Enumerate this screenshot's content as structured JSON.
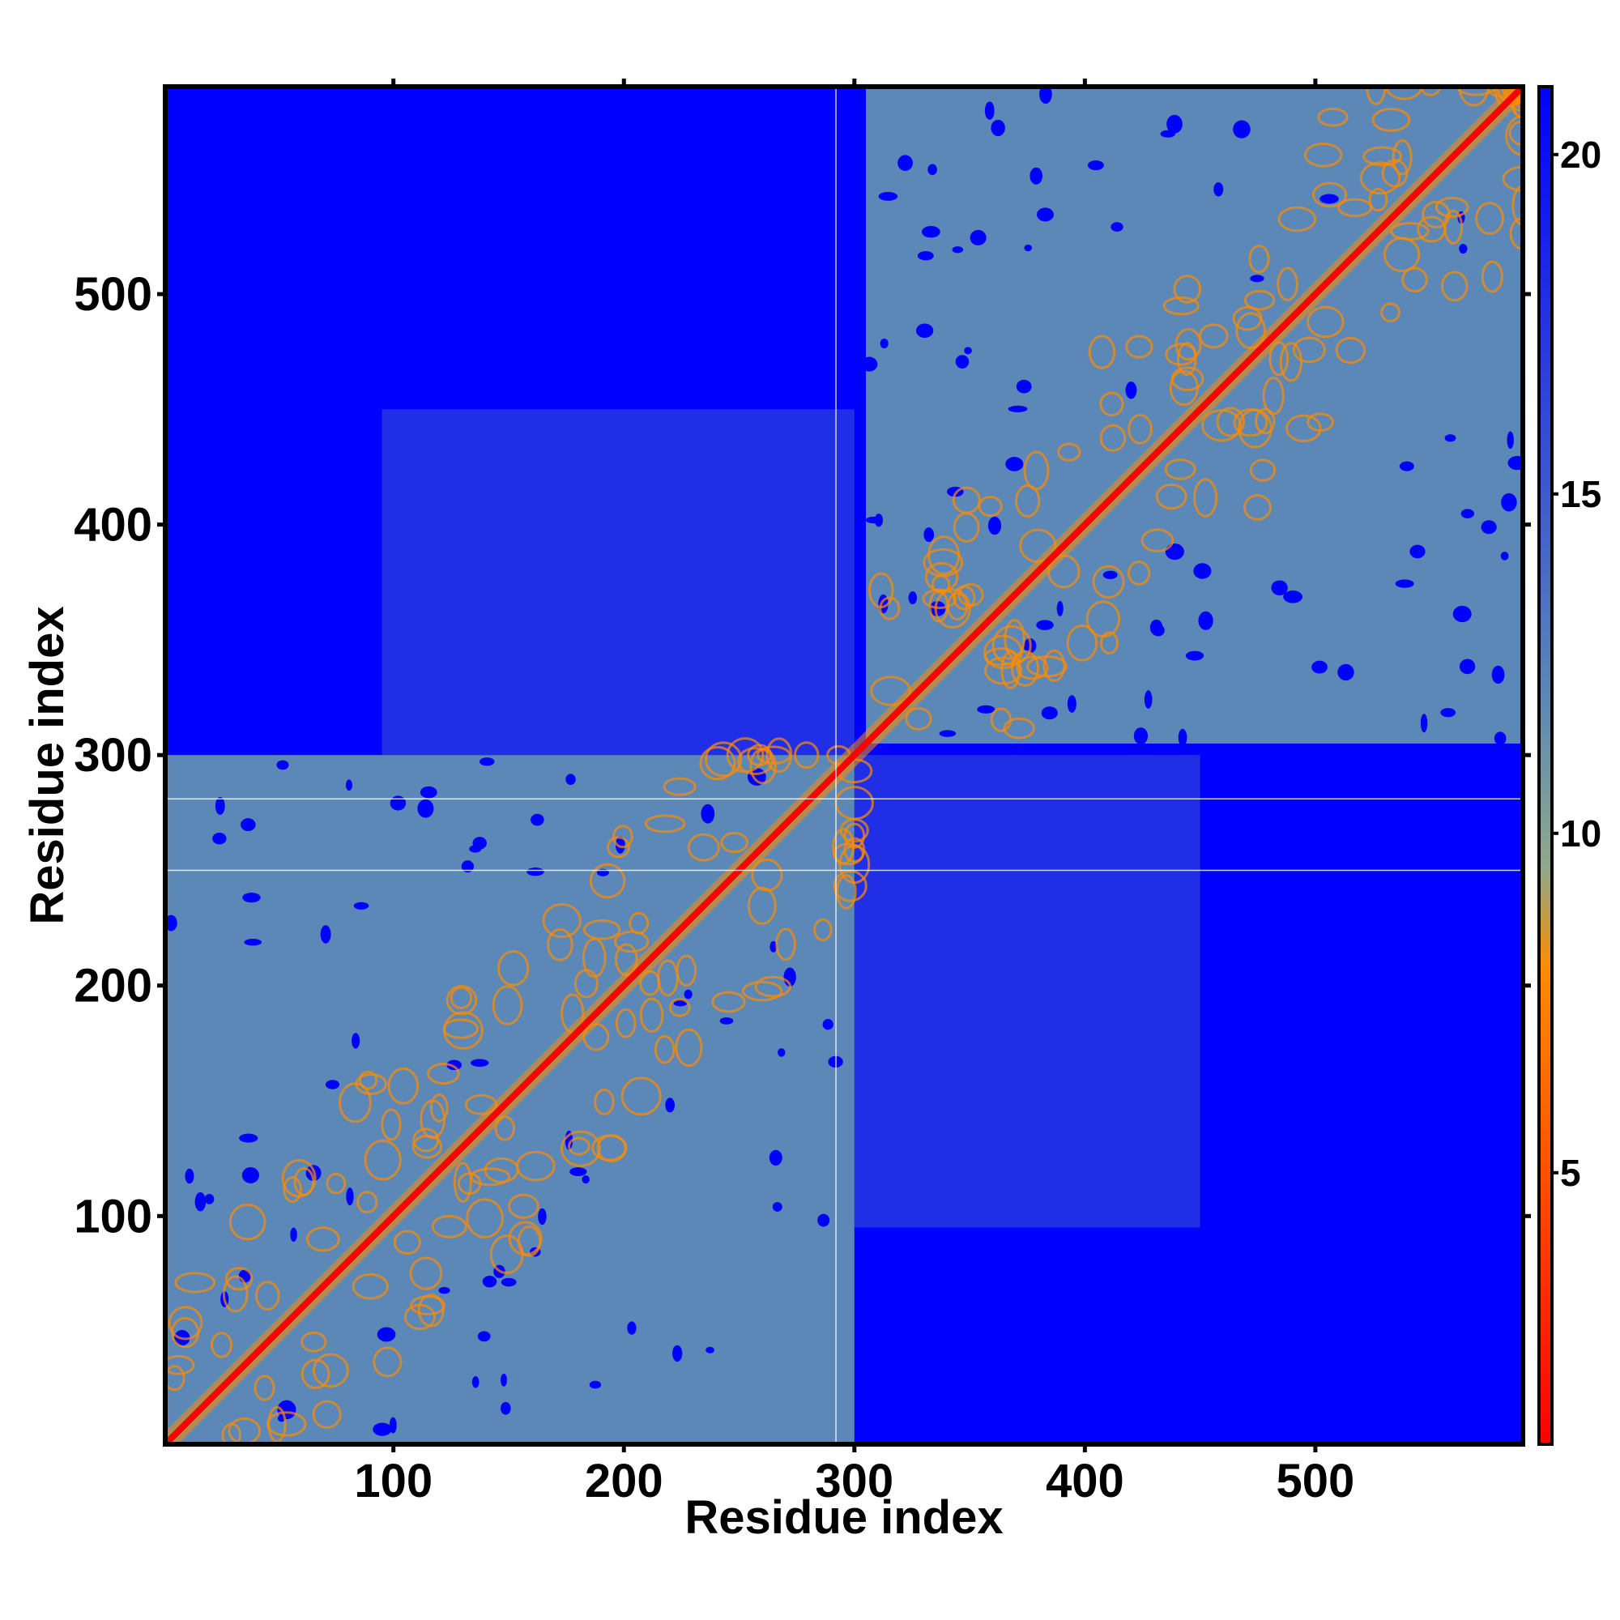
{
  "chart_data": {
    "type": "heatmap",
    "title": "",
    "xlabel": "Residue index",
    "ylabel": "Residue index",
    "xlim": [
      1,
      590
    ],
    "ylim": [
      1,
      590
    ],
    "xticks": [
      100,
      200,
      300,
      400,
      500
    ],
    "yticks": [
      100,
      200,
      300,
      400,
      500
    ],
    "colorbar": {
      "ticks": [
        5,
        10,
        15,
        20
      ],
      "range": [
        1,
        21
      ],
      "colors": [
        "#ff0000",
        "#ff8c00",
        "#8fa98a",
        "#5b88b6",
        "#0000ff"
      ],
      "stops": [
        1,
        8,
        9.5,
        12,
        21
      ]
    },
    "domains": [
      {
        "start": 1,
        "end": 300,
        "label": ""
      },
      {
        "start": 305,
        "end": 590,
        "label": ""
      }
    ],
    "gap_lines_y": [
      250,
      281
    ],
    "gap_lines_x": [
      292
    ],
    "colors": {
      "far": "#0000ff",
      "mid": "#5b88b6",
      "near": "#ff8c00",
      "contact": "#ff0000"
    }
  }
}
